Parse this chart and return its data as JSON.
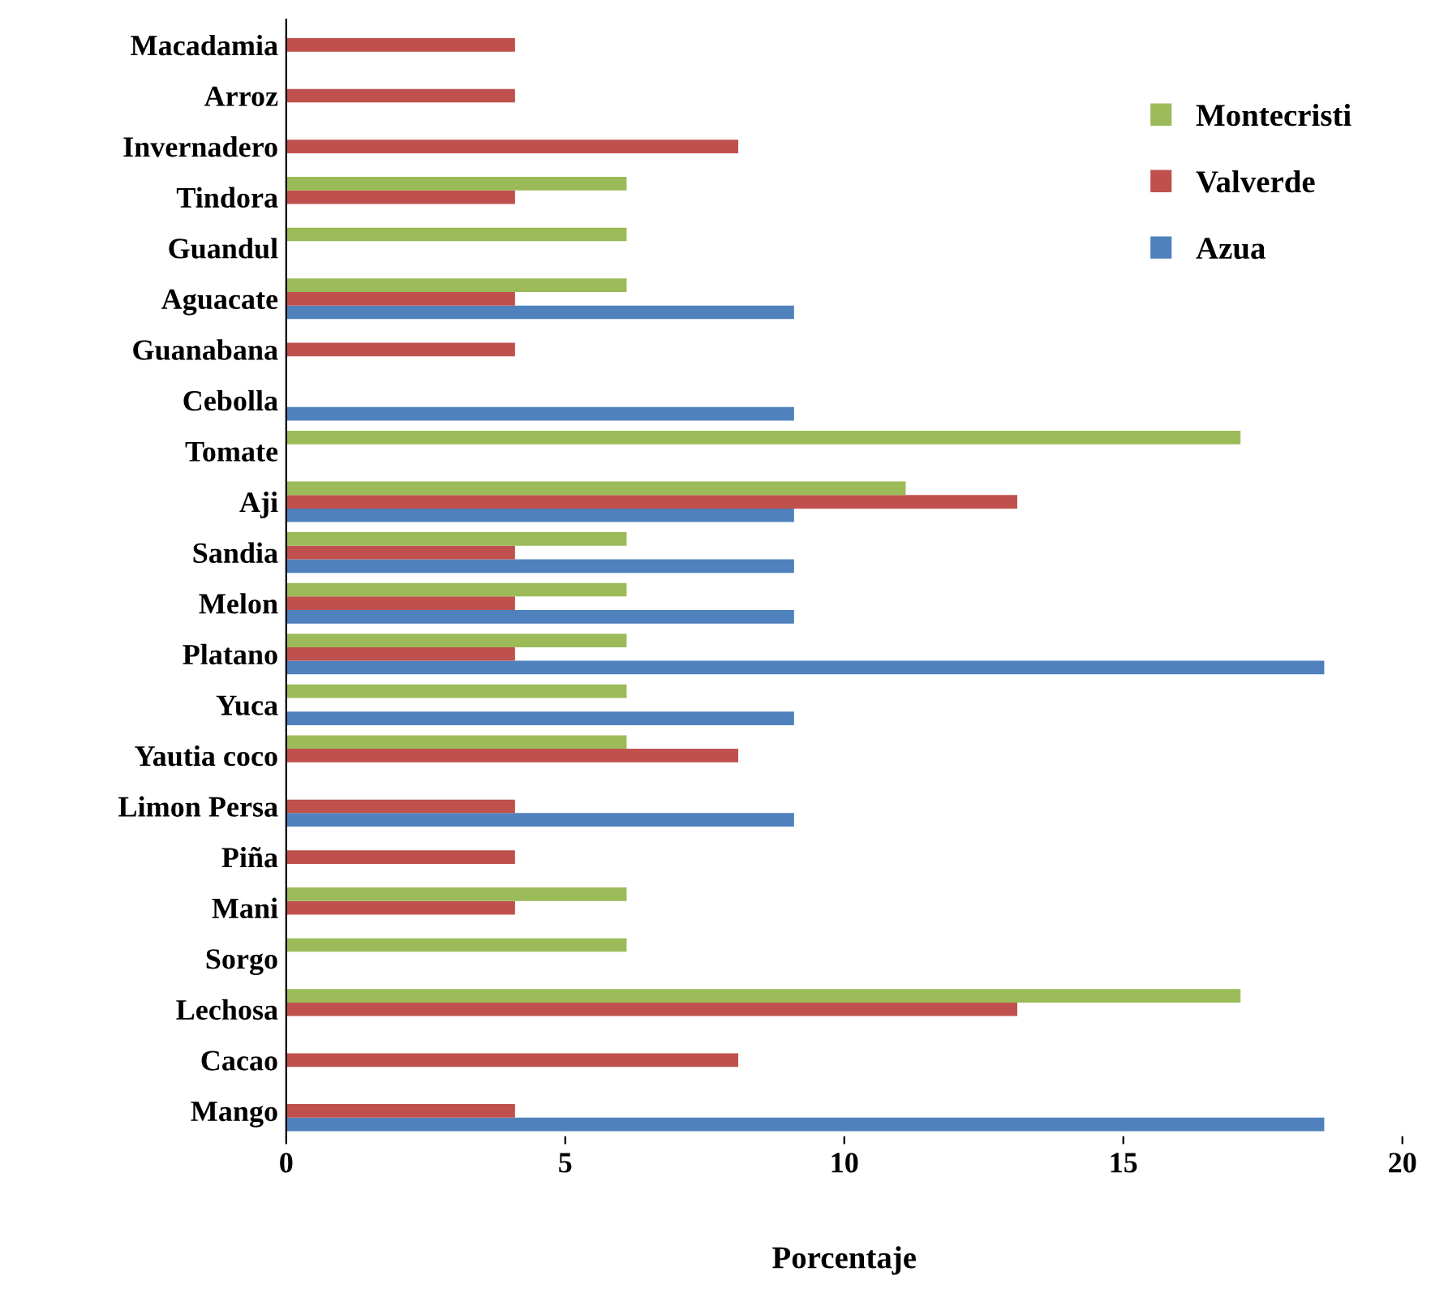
{
  "chart_data": {
    "type": "bar",
    "orientation": "horizontal",
    "xlabel": "Porcentaje",
    "categories": [
      "Macadamia",
      "Arroz",
      "Invernadero",
      "Tindora",
      "Guandul",
      "Aguacate",
      "Guanabana",
      "Cebolla",
      "Tomate",
      "Aji",
      "Sandia",
      "Melon",
      "Platano",
      "Yuca",
      "Yautia coco",
      "Limon Persa",
      "Piña",
      "Mani",
      "Sorgo",
      "Lechosa",
      "Cacao",
      "Mango"
    ],
    "series": [
      {
        "name": "Azua",
        "color": "#4f81bd",
        "values": [
          0,
          0,
          0,
          0,
          0,
          9.1,
          0,
          9.1,
          0,
          9.1,
          9.1,
          9.1,
          18.6,
          9.1,
          0,
          9.1,
          0,
          0,
          0,
          0,
          0,
          18.6
        ]
      },
      {
        "name": "Valverde",
        "color": "#c0504d",
        "values": [
          4.1,
          4.1,
          8.1,
          4.1,
          0,
          4.1,
          4.1,
          0,
          0,
          13.1,
          4.1,
          4.1,
          4.1,
          0,
          8.1,
          4.1,
          4.1,
          4.1,
          0,
          13.1,
          8.1,
          4.1
        ]
      },
      {
        "name": "Montecristi",
        "color": "#9bbb59",
        "values": [
          0,
          0,
          0,
          6.1,
          6.1,
          6.1,
          0,
          0,
          17.1,
          11.1,
          6.1,
          6.1,
          6.1,
          6.1,
          6.1,
          0,
          0,
          6.1,
          6.1,
          17.1,
          0,
          0
        ]
      }
    ],
    "xlim": [
      0,
      20
    ],
    "xticks": [
      0,
      5,
      10,
      15,
      20
    ],
    "grid": false,
    "legend": "top right"
  }
}
